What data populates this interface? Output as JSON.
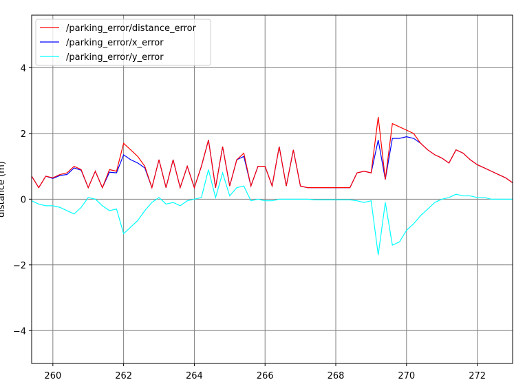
{
  "chart_data": {
    "type": "line",
    "ylabel": "distance (m)",
    "x": [
      259.4,
      259.6,
      259.8,
      260.0,
      260.2,
      260.4,
      260.6,
      260.8,
      261.0,
      261.2,
      261.4,
      261.6,
      261.8,
      262.0,
      262.2,
      262.4,
      262.6,
      262.8,
      263.0,
      263.2,
      263.4,
      263.6,
      263.8,
      264.0,
      264.2,
      264.4,
      264.6,
      264.8,
      265.0,
      265.2,
      265.4,
      265.6,
      265.8,
      266.0,
      266.2,
      266.4,
      266.6,
      266.8,
      267.0,
      267.2,
      267.4,
      267.6,
      267.8,
      268.0,
      268.2,
      268.4,
      268.6,
      268.8,
      269.0,
      269.2,
      269.4,
      269.6,
      269.8,
      270.0,
      270.2,
      270.4,
      270.6,
      270.8,
      271.0,
      271.2,
      271.4,
      271.6,
      271.8,
      272.0,
      272.2,
      272.4,
      272.6,
      272.8,
      273.0
    ],
    "series": [
      {
        "name": "/parking_error/distance_error",
        "color": "#ff0000",
        "values": [
          0.7,
          0.35,
          0.7,
          0.65,
          0.75,
          0.8,
          1.0,
          0.9,
          0.35,
          0.85,
          0.35,
          0.9,
          0.85,
          1.7,
          1.5,
          1.3,
          1.0,
          0.35,
          1.2,
          0.35,
          1.2,
          0.35,
          1.0,
          0.35,
          1.0,
          1.8,
          0.35,
          1.6,
          0.4,
          1.2,
          1.4,
          0.4,
          1.0,
          1.0,
          0.4,
          1.6,
          0.4,
          1.5,
          0.4,
          0.35,
          0.35,
          0.35,
          0.35,
          0.35,
          0.35,
          0.35,
          0.8,
          0.85,
          0.8,
          2.5,
          0.6,
          2.3,
          2.2,
          2.1,
          2.0,
          1.7,
          1.5,
          1.35,
          1.25,
          1.1,
          1.5,
          1.4,
          1.2,
          1.05,
          0.95,
          0.85,
          0.75,
          0.65,
          0.5
        ]
      },
      {
        "name": "/parking_error/x_error",
        "color": "#0000ff",
        "values": [
          0.7,
          0.35,
          0.7,
          0.63,
          0.72,
          0.75,
          0.95,
          0.88,
          0.35,
          0.85,
          0.35,
          0.82,
          0.8,
          1.35,
          1.2,
          1.1,
          0.95,
          0.35,
          1.2,
          0.35,
          1.2,
          0.35,
          1.0,
          0.35,
          1.0,
          1.8,
          0.35,
          1.6,
          0.4,
          1.2,
          1.3,
          0.4,
          1.0,
          1.0,
          0.4,
          1.6,
          0.4,
          1.5,
          0.4,
          0.35,
          0.35,
          0.35,
          0.35,
          0.35,
          0.35,
          0.35,
          0.8,
          0.85,
          0.8,
          1.8,
          0.6,
          1.85,
          1.85,
          1.9,
          1.85,
          1.7,
          1.5,
          1.35,
          1.25,
          1.1,
          1.5,
          1.4,
          1.2,
          1.05,
          0.95,
          0.85,
          0.75,
          0.65,
          0.5
        ]
      },
      {
        "name": "/parking_error/y_error",
        "color": "#00ffff",
        "values": [
          -0.05,
          -0.15,
          -0.2,
          -0.2,
          -0.25,
          -0.35,
          -0.45,
          -0.25,
          0.05,
          0.0,
          -0.2,
          -0.35,
          -0.3,
          -1.05,
          -0.85,
          -0.65,
          -0.35,
          -0.1,
          0.05,
          -0.15,
          -0.1,
          -0.2,
          -0.05,
          0.0,
          0.05,
          0.9,
          0.05,
          0.8,
          0.1,
          0.35,
          0.4,
          -0.05,
          0.0,
          -0.05,
          -0.05,
          0.0,
          0.0,
          0.0,
          0.0,
          0.0,
          -0.02,
          -0.02,
          -0.02,
          -0.02,
          -0.02,
          -0.02,
          -0.05,
          -0.1,
          -0.05,
          -1.7,
          -0.1,
          -1.4,
          -1.3,
          -0.95,
          -0.75,
          -0.5,
          -0.3,
          -0.1,
          0.0,
          0.05,
          0.15,
          0.1,
          0.1,
          0.05,
          0.05,
          0.0,
          0.0,
          0.0,
          0.0
        ]
      }
    ],
    "xlim": [
      259.4,
      273.0
    ],
    "ylim": [
      -5,
      5.6
    ],
    "xticks": [
      260,
      262,
      264,
      266,
      268,
      270,
      272
    ],
    "yticks": [
      {
        "value": -4,
        "label": "−4"
      },
      {
        "value": -2,
        "label": "−2"
      },
      0,
      2,
      4
    ],
    "grid": true,
    "legend": "upper-left"
  }
}
